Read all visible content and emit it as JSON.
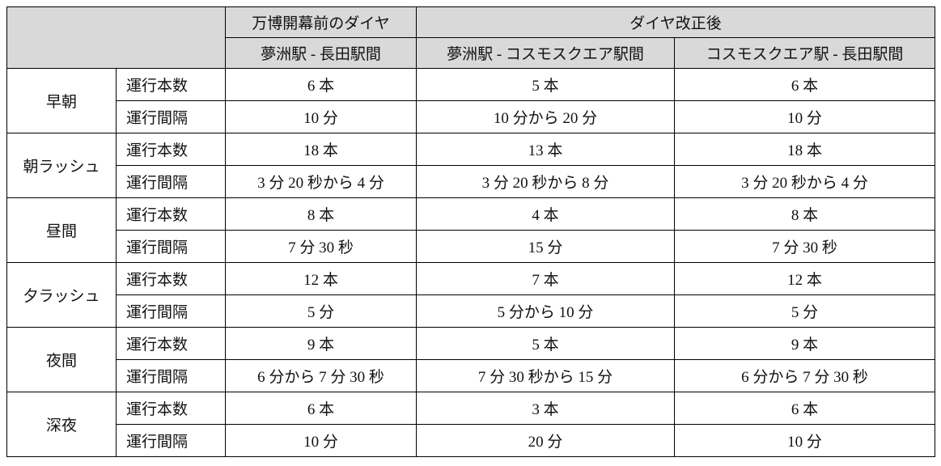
{
  "header": {
    "group_before": "万博開幕前のダイヤ",
    "group_after": "ダイヤ改正後",
    "columns": [
      "夢洲駅 - 長田駅間",
      "夢洲駅 - コスモスクエア駅間",
      "コスモスクエア駅 - 長田駅間"
    ]
  },
  "periods": [
    {
      "name": "早朝",
      "rows": [
        {
          "metric": "運行本数",
          "values": [
            "6 本",
            "5 本",
            "6 本"
          ]
        },
        {
          "metric": "運行間隔",
          "values": [
            "10 分",
            "10 分から 20 分",
            "10 分"
          ]
        }
      ]
    },
    {
      "name": "朝ラッシュ",
      "rows": [
        {
          "metric": "運行本数",
          "values": [
            "18 本",
            "13 本",
            "18 本"
          ]
        },
        {
          "metric": "運行間隔",
          "values": [
            "3 分 20 秒から 4 分",
            "3 分 20 秒から 8 分",
            "3 分 20 秒から 4 分"
          ]
        }
      ]
    },
    {
      "name": "昼間",
      "rows": [
        {
          "metric": "運行本数",
          "values": [
            "8 本",
            "4 本",
            "8 本"
          ]
        },
        {
          "metric": "運行間隔",
          "values": [
            "7 分 30 秒",
            "15 分",
            "7 分 30 秒"
          ]
        }
      ]
    },
    {
      "name": "夕ラッシュ",
      "rows": [
        {
          "metric": "運行本数",
          "values": [
            "12 本",
            "7 本",
            "12 本"
          ]
        },
        {
          "metric": "運行間隔",
          "values": [
            "5 分",
            "5 分から 10 分",
            "5 分"
          ]
        }
      ]
    },
    {
      "name": "夜間",
      "rows": [
        {
          "metric": "運行本数",
          "values": [
            "9 本",
            "5 本",
            "9 本"
          ]
        },
        {
          "metric": "運行間隔",
          "values": [
            "6 分から 7 分 30 秒",
            "7 分 30 秒から 15 分",
            "6 分から 7 分 30 秒"
          ]
        }
      ]
    },
    {
      "name": "深夜",
      "rows": [
        {
          "metric": "運行本数",
          "values": [
            "6 本",
            "3 本",
            "6 本"
          ]
        },
        {
          "metric": "運行間隔",
          "values": [
            "10 分",
            "20 分",
            "10 分"
          ]
        }
      ]
    }
  ]
}
